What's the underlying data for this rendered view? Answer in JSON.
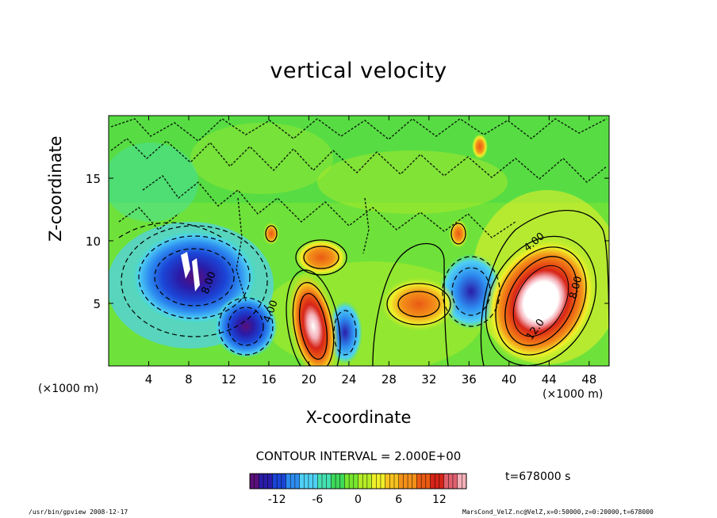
{
  "chart_data": {
    "type": "heatmap",
    "title": "vertical velocity",
    "xlabel": "X-coordinate",
    "ylabel": "Z-coordinate",
    "x_unit_label_left": "(×1000 m)",
    "x_unit_label_right": "(×1000 m)",
    "xlim": [
      0,
      50
    ],
    "ylim": [
      0,
      20
    ],
    "x_ticks": [
      4,
      8,
      12,
      16,
      20,
      24,
      28,
      32,
      36,
      40,
      44,
      48
    ],
    "y_ticks": [
      5,
      10,
      15
    ],
    "contour_interval_text": "CONTOUR INTERVAL = 2.000E+00",
    "contour_labels": [
      "4.00",
      "8.00",
      "12.0",
      "4.00",
      "8.00"
    ],
    "colorbar": {
      "range": [
        -16,
        16
      ],
      "ticks": [
        -12,
        -6,
        0,
        6,
        12
      ],
      "colors": [
        "#5a0f7a",
        "#2a1ca8",
        "#1b45d6",
        "#2d8cf0",
        "#4fd0f4",
        "#45e0b0",
        "#3ed95a",
        "#77e62f",
        "#b5ec27",
        "#f0f02a",
        "#f7c21f",
        "#f39019",
        "#ea5a14",
        "#d72418",
        "#e0606e",
        "#f4b0b8"
      ]
    },
    "features": [
      {
        "type": "updraft",
        "x": 43,
        "z": 5.5,
        "peak": 16
      },
      {
        "type": "updraft",
        "x": 20.5,
        "z": 3.0,
        "peak": 14
      },
      {
        "type": "updraft",
        "x": 33,
        "z": 5.5,
        "peak": 10
      },
      {
        "type": "updraft",
        "x": 23,
        "z": 9,
        "peak": 6
      },
      {
        "type": "downdraft",
        "x": 9,
        "z": 7,
        "peak": -14
      },
      {
        "type": "downdraft",
        "x": 14,
        "z": 3,
        "peak": -12
      },
      {
        "type": "downdraft",
        "x": 36,
        "z": 6,
        "peak": -8
      },
      {
        "type": "downdraft",
        "x": 23.5,
        "z": 3,
        "peak": -6
      }
    ]
  },
  "time_label": "t=678000 s",
  "footer_left": "/usr/bin/gpview  2008-12-17",
  "footer_right": "MarsCond_VelZ.nc@VelZ,x=0:50000,z=0:20000,t=678000"
}
